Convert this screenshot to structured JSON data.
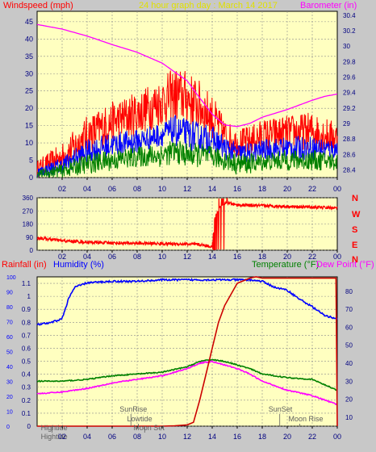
{
  "colors": {
    "background": "#c8c8c8",
    "plot_bg": "#ffffc0",
    "grid": "#8c8c8c",
    "red": "#ff0000",
    "blue": "#0000ff",
    "green": "#008000",
    "magenta": "#ff00ff",
    "dark_red": "#cc0000",
    "yellow_title": "#e0e000",
    "annot": "#606060",
    "axis_text": "#000080"
  },
  "chart_data": [
    {
      "type": "line",
      "title": "24 hour graph day : March 14 2017",
      "ylabel_left": "Windspeed (mph)",
      "ylabel_right": "Barometer (in)",
      "x_ticks": [
        "02",
        "04",
        "06",
        "08",
        "10",
        "12",
        "14",
        "16",
        "18",
        "20",
        "22",
        "00"
      ],
      "x_range_hours": [
        0,
        24
      ],
      "y_left_range": [
        0,
        48
      ],
      "y_left_ticks": [
        "0",
        "5",
        "10",
        "15",
        "20",
        "25",
        "30",
        "35",
        "40",
        "45"
      ],
      "y_right_range": [
        28.3,
        30.45
      ],
      "y_right_ticks": [
        "28.4",
        "28.6",
        "28.8",
        "29",
        "29.2",
        "29.4",
        "29.6",
        "29.8",
        "30",
        "30.2",
        "30.4"
      ],
      "grid": true,
      "series": [
        {
          "color": "red",
          "x": [
            0,
            2,
            4,
            6,
            8,
            10,
            11,
            12,
            13,
            14,
            15,
            16,
            17,
            18,
            20,
            22,
            24
          ],
          "low": [
            0,
            2,
            6,
            10,
            12,
            15,
            16,
            15,
            13,
            11,
            8,
            6,
            6,
            7,
            8,
            8,
            7
          ],
          "high": [
            5,
            10,
            18,
            22,
            25,
            29,
            32,
            31,
            28,
            24,
            17,
            14,
            15,
            17,
            18,
            19,
            16
          ]
        },
        {
          "color": "blue",
          "x": [
            0,
            2,
            4,
            6,
            8,
            10,
            11,
            12,
            13,
            14,
            15,
            16,
            17,
            18,
            20,
            22,
            24
          ],
          "low": [
            0,
            1,
            4,
            6,
            7,
            9,
            9,
            8,
            7,
            7,
            5,
            4,
            4,
            5,
            5,
            5,
            5
          ],
          "high": [
            3,
            6,
            11,
            13,
            14,
            16,
            18,
            17,
            16,
            15,
            12,
            10,
            10,
            11,
            12,
            12,
            11
          ]
        },
        {
          "color": "green",
          "x": [
            0,
            2,
            4,
            6,
            8,
            10,
            11,
            12,
            13,
            14,
            15,
            16,
            17,
            18,
            20,
            22,
            24
          ],
          "low": [
            0,
            0,
            1,
            2,
            3,
            3,
            4,
            3,
            3,
            3,
            2,
            1,
            1,
            2,
            2,
            2,
            2
          ],
          "high": [
            2,
            4,
            7,
            8,
            9,
            10,
            11,
            10,
            10,
            9,
            8,
            7,
            7,
            7,
            8,
            8,
            7
          ]
        },
        {
          "color": "magenta",
          "axis": "right",
          "x": [
            0,
            1,
            2,
            4,
            6,
            8,
            10,
            12,
            13,
            14,
            15,
            16,
            17,
            18,
            20,
            22,
            23,
            24
          ],
          "values": [
            30.28,
            30.25,
            30.22,
            30.13,
            30.02,
            29.92,
            29.78,
            29.55,
            29.33,
            29.12,
            28.98,
            28.96,
            29.0,
            29.08,
            29.18,
            29.3,
            29.35,
            29.38
          ]
        }
      ]
    },
    {
      "type": "scatter",
      "ylabel_right": [
        "N",
        "W",
        "S",
        "E",
        "N"
      ],
      "y_range": [
        0,
        360
      ],
      "y_ticks": [
        "0",
        "90",
        "180",
        "270",
        "360"
      ],
      "x_range_hours": [
        0,
        24
      ],
      "grid": true,
      "series": [
        {
          "color": "red",
          "x": [
            0,
            2,
            4,
            6,
            8,
            10,
            12,
            13,
            14,
            14.2,
            14.6,
            15.2,
            16,
            18,
            20,
            22,
            24
          ],
          "values": [
            85,
            65,
            55,
            50,
            48,
            45,
            42,
            38,
            25,
            220,
            300,
            325,
            310,
            305,
            300,
            295,
            290
          ]
        }
      ]
    },
    {
      "type": "line",
      "ylabel_left_1": "Rainfall (in)",
      "ylabel_left_2": "Humidity (%)",
      "ylabel_right_1": "Temperature (°F)",
      "ylabel_right_2": "Dew Point (°F)",
      "rain_range": [
        0,
        1.15
      ],
      "rain_ticks": [
        "0",
        "0.1",
        "0.2",
        "0.3",
        "0.4",
        "0.5",
        "0.6",
        "0.7",
        "0.8",
        "0.9",
        "1",
        "1.1"
      ],
      "humidity_range": [
        0,
        100
      ],
      "humidity_ticks": [
        "0",
        "10",
        "20",
        "30",
        "40",
        "50",
        "60",
        "70",
        "80",
        "90",
        "100"
      ],
      "temp_range": [
        5,
        88
      ],
      "temp_ticks": [
        "10",
        "20",
        "30",
        "40",
        "50",
        "60",
        "70",
        "80"
      ],
      "x_range_hours": [
        0,
        24
      ],
      "grid": true,
      "series": [
        {
          "color": "blue",
          "axis": "humidity",
          "x": [
            0,
            1,
            2,
            2.5,
            3,
            4,
            6,
            8,
            10,
            12,
            14,
            16,
            17,
            18,
            19,
            20,
            21,
            22,
            23,
            24
          ],
          "values": [
            68,
            69,
            72,
            85,
            93,
            96,
            97,
            97,
            98,
            98,
            98,
            98,
            98,
            97,
            93,
            91,
            85,
            80,
            74,
            72
          ]
        },
        {
          "color": "red",
          "axis": "rain",
          "x": [
            0,
            10,
            11,
            12,
            12.5,
            13,
            13.5,
            14,
            14.5,
            15,
            16,
            17,
            17.5,
            18,
            20,
            22,
            23.9,
            24
          ],
          "values": [
            0,
            0,
            0.003,
            0.01,
            0.03,
            0.2,
            0.4,
            0.6,
            0.8,
            0.93,
            1.1,
            1.14,
            1.15,
            1.14,
            1.14,
            1.14,
            1.14,
            0.0
          ]
        },
        {
          "color": "green",
          "axis": "temp",
          "x": [
            0,
            2,
            4,
            6,
            8,
            10,
            12,
            13,
            14,
            15,
            16,
            17,
            18,
            20,
            22,
            24
          ],
          "values": [
            30,
            30,
            31,
            33,
            34,
            35,
            38,
            41,
            42,
            41,
            39,
            37,
            34,
            32,
            31,
            25
          ]
        },
        {
          "color": "magenta",
          "axis": "temp",
          "x": [
            0,
            2,
            4,
            6,
            8,
            10,
            12,
            13,
            14,
            15,
            16,
            17,
            18,
            20,
            22,
            24
          ],
          "values": [
            23,
            24,
            26,
            29,
            31,
            33,
            37,
            40,
            41,
            39,
            37,
            34,
            30,
            25,
            22,
            17
          ]
        }
      ],
      "annotations": [
        {
          "label": "Hightide",
          "hour": 1.2,
          "level": 3
        },
        {
          "label": "SunRise",
          "hour": 7.5,
          "level": 1
        },
        {
          "label": "Lowtide",
          "hour": 8.1,
          "level": 2
        },
        {
          "label": "Moon Set",
          "hour": 8.6,
          "level": 3
        },
        {
          "label": "SunSet",
          "hour": 19.4,
          "level": 1
        },
        {
          "label": "Moon Rise",
          "hour": 21.0,
          "level": 2
        },
        {
          "label": "Hightide",
          "hour": 1.2,
          "level": 4
        }
      ]
    }
  ]
}
